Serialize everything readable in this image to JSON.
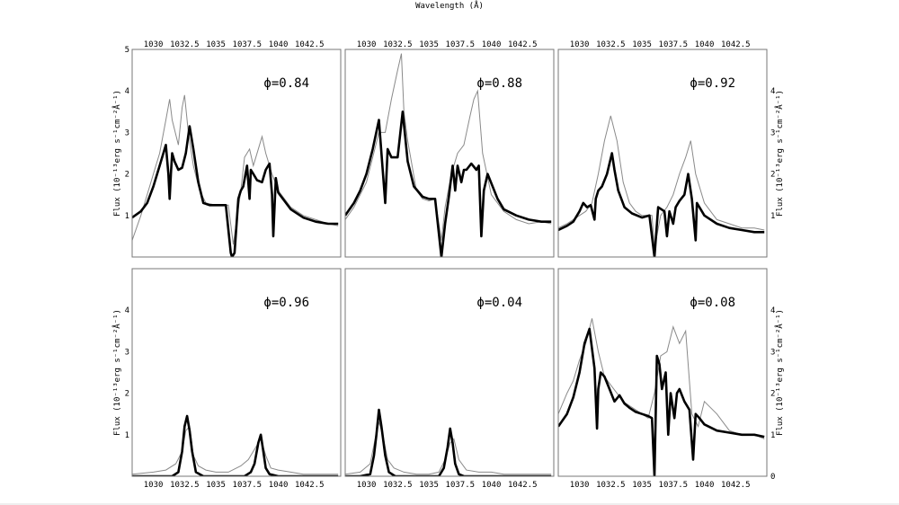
{
  "figure": {
    "top_label": "Wavelength (Å)",
    "ylabel": "Flux (10⁻¹³erg s⁻¹cm⁻²Å⁻¹)"
  },
  "chart_data": [
    {
      "type": "line",
      "phase_label": "ϕ=0.84",
      "panel": "top-left",
      "xlim": [
        1028.3,
        1045.0
      ],
      "ylim": [
        0,
        5
      ],
      "x_ticks": [
        1030,
        1032.5,
        1035,
        1037.5,
        1040,
        1042.5
      ],
      "x_ticks_position": "top",
      "y_ticks": [
        1,
        2,
        3,
        4,
        5
      ],
      "y_ticks_side": "left",
      "model": {
        "x": [
          1028.3,
          1029,
          1029.5,
          1030,
          1030.5,
          1031,
          1031.2,
          1031.3,
          1031.4,
          1031.5,
          1031.7,
          1032,
          1032.3,
          1032.6,
          1032.9,
          1033.2,
          1033.6,
          1034,
          1034.5,
          1035,
          1035.8,
          1036.2,
          1036.3,
          1036.5,
          1036.8,
          1037,
          1037.2,
          1037.5,
          1037.7,
          1037.8,
          1038,
          1038.3,
          1038.7,
          1039,
          1039.3,
          1039.5,
          1039.6,
          1039.8,
          1040,
          1041,
          1042,
          1043,
          1044,
          1044.8
        ],
        "y": [
          0.95,
          1.1,
          1.3,
          1.7,
          2.2,
          2.7,
          2.0,
          1.4,
          2.0,
          2.5,
          2.3,
          2.1,
          2.15,
          2.5,
          3.15,
          2.6,
          1.8,
          1.3,
          1.25,
          1.25,
          1.25,
          0.1,
          0.0,
          0.1,
          1.4,
          1.6,
          1.7,
          2.2,
          1.4,
          2.1,
          2.0,
          1.85,
          1.8,
          2.1,
          2.25,
          1.5,
          0.5,
          1.9,
          1.55,
          1.15,
          0.95,
          0.85,
          0.8,
          0.8
        ]
      },
      "observed": {
        "x": [
          1028.3,
          1029,
          1029.5,
          1030,
          1030.5,
          1031,
          1031.3,
          1031.5,
          1032,
          1032.3,
          1032.5,
          1032.8,
          1033.2,
          1033.7,
          1034.2,
          1035,
          1036,
          1036.4,
          1037,
          1037.3,
          1037.7,
          1038,
          1038.5,
          1038.7,
          1039,
          1039.5,
          1040,
          1041,
          1042,
          1043,
          1044,
          1044.8
        ],
        "y": [
          0.4,
          1.0,
          1.5,
          2.0,
          2.5,
          3.3,
          3.8,
          3.3,
          2.7,
          3.6,
          3.9,
          3.0,
          2.2,
          1.6,
          1.3,
          1.25,
          1.25,
          0.3,
          1.6,
          2.4,
          2.6,
          2.2,
          2.7,
          2.9,
          2.5,
          2.0,
          1.6,
          1.2,
          1.0,
          0.9,
          0.8,
          0.75
        ]
      }
    },
    {
      "type": "line",
      "phase_label": "ϕ=0.88",
      "panel": "top-middle",
      "xlim": [
        1028.3,
        1045.0
      ],
      "ylim": [
        0,
        5
      ],
      "x_ticks": [
        1030,
        1032.5,
        1035,
        1037.5,
        1040,
        1042.5
      ],
      "x_ticks_position": "top",
      "y_ticks": [],
      "y_ticks_side": "none",
      "model": {
        "x": [
          1028.3,
          1029,
          1029.5,
          1030,
          1030.5,
          1031,
          1031.3,
          1031.5,
          1031.7,
          1032,
          1032.5,
          1032.9,
          1033.3,
          1033.8,
          1034.5,
          1035,
          1035.5,
          1036,
          1036.3,
          1036.6,
          1036.9,
          1037.1,
          1037.3,
          1037.6,
          1037.8,
          1038,
          1038.4,
          1038.8,
          1039,
          1039.2,
          1039.4,
          1039.7,
          1040.5,
          1041,
          1042,
          1043,
          1044,
          1044.8
        ],
        "y": [
          1.0,
          1.3,
          1.6,
          2.0,
          2.6,
          3.3,
          2.1,
          1.3,
          2.6,
          2.4,
          2.4,
          3.5,
          2.3,
          1.7,
          1.45,
          1.4,
          1.4,
          0.0,
          0.8,
          1.45,
          2.2,
          1.6,
          2.2,
          1.8,
          2.1,
          2.1,
          2.25,
          2.1,
          2.2,
          0.5,
          1.6,
          2.0,
          1.4,
          1.15,
          1.0,
          0.9,
          0.85,
          0.85
        ]
      },
      "observed": {
        "x": [
          1028.3,
          1029,
          1030,
          1030.5,
          1031,
          1031.5,
          1032,
          1032.5,
          1032.8,
          1033,
          1033.3,
          1034,
          1034.5,
          1035,
          1035.5,
          1036,
          1036.3,
          1036.8,
          1037.3,
          1037.8,
          1038.3,
          1038.6,
          1038.9,
          1039.3,
          1040,
          1041,
          1042,
          1043,
          1044,
          1044.8
        ],
        "y": [
          0.9,
          1.2,
          1.8,
          2.4,
          3.0,
          3.0,
          3.8,
          4.5,
          4.9,
          3.5,
          2.8,
          1.6,
          1.4,
          1.35,
          1.4,
          0.4,
          1.2,
          2.0,
          2.5,
          2.7,
          3.4,
          3.8,
          4.0,
          2.5,
          1.5,
          1.1,
          0.9,
          0.8,
          0.85,
          0.8
        ]
      }
    },
    {
      "type": "line",
      "phase_label": "ϕ=0.92",
      "panel": "top-right",
      "xlim": [
        1028.3,
        1045.0
      ],
      "ylim": [
        0,
        5
      ],
      "x_ticks": [
        1030,
        1032.5,
        1035,
        1037.5,
        1040,
        1042.5
      ],
      "x_ticks_position": "top",
      "y_ticks": [
        1,
        2,
        3,
        4
      ],
      "y_ticks_side": "right",
      "model": {
        "x": [
          1028.3,
          1029,
          1029.5,
          1030,
          1030.3,
          1030.6,
          1030.9,
          1031.2,
          1031.3,
          1031.5,
          1031.8,
          1032.2,
          1032.6,
          1032.8,
          1033.1,
          1033.6,
          1034.2,
          1035,
          1035.6,
          1036.0,
          1036.3,
          1036.8,
          1037.0,
          1037.2,
          1037.5,
          1037.7,
          1038.0,
          1038.4,
          1038.7,
          1039.0,
          1039.3,
          1039.4,
          1039.7,
          1040,
          1041,
          1042,
          1043,
          1044,
          1044.8
        ],
        "y": [
          0.65,
          0.75,
          0.85,
          1.1,
          1.3,
          1.2,
          1.25,
          0.9,
          1.4,
          1.6,
          1.7,
          2.0,
          2.5,
          2.1,
          1.6,
          1.2,
          1.05,
          0.95,
          1.0,
          0.0,
          1.2,
          1.1,
          0.5,
          1.1,
          0.8,
          1.2,
          1.35,
          1.5,
          2.0,
          1.4,
          0.4,
          1.3,
          1.15,
          1.0,
          0.8,
          0.7,
          0.65,
          0.6,
          0.6
        ]
      },
      "observed": {
        "x": [
          1028.3,
          1029,
          1029.5,
          1030,
          1030.5,
          1031,
          1031.5,
          1032,
          1032.5,
          1033,
          1033.5,
          1034,
          1034.5,
          1035,
          1035.8,
          1036,
          1036.5,
          1037,
          1037.5,
          1038,
          1038.5,
          1038.9,
          1039.3,
          1040,
          1041,
          1042,
          1043,
          1044,
          1044.8
        ],
        "y": [
          0.7,
          0.8,
          0.9,
          1.0,
          1.1,
          1.3,
          2.0,
          2.8,
          3.4,
          2.8,
          1.8,
          1.3,
          1.1,
          1.0,
          1.0,
          0.2,
          1.0,
          1.2,
          1.5,
          2.0,
          2.4,
          2.8,
          2.0,
          1.3,
          0.9,
          0.8,
          0.7,
          0.7,
          0.65
        ]
      }
    },
    {
      "type": "line",
      "phase_label": "ϕ=0.96",
      "panel": "bottom-left",
      "xlim": [
        1028.3,
        1045.0
      ],
      "ylim": [
        0,
        5
      ],
      "x_ticks": [
        1030,
        1032.5,
        1035,
        1037.5,
        1040,
        1042.5
      ],
      "x_ticks_position": "bottom",
      "y_ticks": [
        1,
        2,
        3,
        4
      ],
      "y_ticks_side": "left",
      "model": {
        "x": [
          1028.3,
          1030,
          1031.5,
          1032.0,
          1032.3,
          1032.5,
          1032.7,
          1032.9,
          1033.1,
          1033.4,
          1034,
          1036,
          1037.3,
          1037.8,
          1038.1,
          1038.4,
          1038.6,
          1038.8,
          1039.0,
          1039.3,
          1040,
          1042,
          1044.8
        ],
        "y": [
          0.0,
          0.0,
          0.0,
          0.1,
          0.6,
          1.2,
          1.45,
          1.1,
          0.6,
          0.1,
          0.0,
          0.0,
          0.0,
          0.1,
          0.3,
          0.8,
          1.0,
          0.6,
          0.2,
          0.05,
          0.0,
          0.0,
          0.0
        ]
      },
      "observed": {
        "x": [
          1028.3,
          1030,
          1031,
          1031.8,
          1032.3,
          1032.6,
          1032.9,
          1033.2,
          1033.6,
          1034.2,
          1035,
          1036,
          1037,
          1037.6,
          1038.2,
          1038.6,
          1039.0,
          1039.4,
          1040,
          1041,
          1042,
          1043,
          1044.8
        ],
        "y": [
          0.05,
          0.1,
          0.15,
          0.3,
          0.6,
          1.1,
          1.2,
          0.5,
          0.25,
          0.15,
          0.1,
          0.1,
          0.25,
          0.4,
          0.7,
          0.9,
          0.5,
          0.2,
          0.15,
          0.1,
          0.05,
          0.05,
          0.05
        ]
      }
    },
    {
      "type": "line",
      "phase_label": "ϕ=0.04",
      "panel": "bottom-middle",
      "xlim": [
        1028.3,
        1045.0
      ],
      "ylim": [
        0,
        5
      ],
      "x_ticks": [
        1030,
        1032.5,
        1035,
        1037.5,
        1040,
        1042.5
      ],
      "x_ticks_position": "bottom",
      "y_ticks": [],
      "y_ticks_side": "none",
      "model": {
        "x": [
          1028.3,
          1029.5,
          1030.3,
          1030.6,
          1030.8,
          1031.0,
          1031.2,
          1031.5,
          1031.8,
          1032.3,
          1034,
          1035.8,
          1036.2,
          1036.5,
          1036.7,
          1036.9,
          1037.1,
          1037.4,
          1037.8,
          1039,
          1044.8
        ],
        "y": [
          0.0,
          0.0,
          0.05,
          0.5,
          1.0,
          1.6,
          1.2,
          0.5,
          0.1,
          0.0,
          0.0,
          0.0,
          0.2,
          0.7,
          1.15,
          0.8,
          0.3,
          0.05,
          0.0,
          0.0,
          0.0
        ]
      },
      "observed": {
        "x": [
          1028.3,
          1029.5,
          1030.3,
          1030.7,
          1031.0,
          1031.3,
          1031.7,
          1032.2,
          1033,
          1034,
          1035,
          1035.8,
          1036.3,
          1036.7,
          1037.0,
          1037.4,
          1038,
          1039,
          1040,
          1041,
          1042,
          1043,
          1044.8
        ],
        "y": [
          0.05,
          0.1,
          0.3,
          0.9,
          1.3,
          1.0,
          0.4,
          0.2,
          0.1,
          0.05,
          0.05,
          0.1,
          0.4,
          0.8,
          0.9,
          0.4,
          0.15,
          0.1,
          0.1,
          0.05,
          0.05,
          0.05,
          0.05
        ]
      }
    },
    {
      "type": "line",
      "phase_label": "ϕ=0.08",
      "panel": "bottom-right",
      "xlim": [
        1028.3,
        1045.0
      ],
      "ylim": [
        0,
        5
      ],
      "x_ticks": [
        1030,
        1032.5,
        1035,
        1037.5,
        1040,
        1042.5
      ],
      "x_ticks_position": "bottom",
      "y_ticks": [
        0,
        1,
        2,
        3,
        4
      ],
      "y_ticks_side": "right",
      "model": {
        "x": [
          1028.3,
          1029,
          1029.5,
          1030,
          1030.4,
          1030.8,
          1031.2,
          1031.4,
          1031.5,
          1031.7,
          1032,
          1032.4,
          1032.8,
          1033.2,
          1033.6,
          1034,
          1034.5,
          1035,
          1035.5,
          1035.8,
          1036.0,
          1036.2,
          1036.4,
          1036.6,
          1036.9,
          1037.1,
          1037.3,
          1037.6,
          1037.8,
          1038,
          1038.4,
          1038.8,
          1039.1,
          1039.3,
          1039.6,
          1040,
          1041,
          1042,
          1043,
          1044,
          1044.8
        ],
        "y": [
          1.2,
          1.5,
          1.9,
          2.5,
          3.2,
          3.55,
          2.6,
          1.15,
          2.1,
          2.5,
          2.4,
          2.1,
          1.8,
          1.95,
          1.75,
          1.65,
          1.55,
          1.5,
          1.45,
          1.4,
          0.0,
          2.9,
          2.7,
          2.1,
          2.5,
          1.0,
          2.0,
          1.4,
          2.0,
          2.1,
          1.8,
          1.6,
          0.4,
          1.5,
          1.4,
          1.25,
          1.1,
          1.05,
          1.0,
          1.0,
          0.95
        ]
      },
      "observed": {
        "x": [
          1028.3,
          1029,
          1029.5,
          1030,
          1030.5,
          1031,
          1031.5,
          1032,
          1032.5,
          1033,
          1033.5,
          1034,
          1034.5,
          1035,
          1035.5,
          1036,
          1036.5,
          1037,
          1037.5,
          1038,
          1038.5,
          1039,
          1039.5,
          1040,
          1041,
          1042,
          1043,
          1044,
          1044.8
        ],
        "y": [
          1.5,
          2.0,
          2.3,
          2.8,
          3.2,
          3.8,
          3.0,
          2.4,
          2.2,
          2.0,
          1.8,
          1.7,
          1.6,
          1.5,
          1.4,
          2.0,
          2.9,
          3.0,
          3.6,
          3.2,
          3.5,
          1.5,
          1.2,
          1.8,
          1.5,
          1.1,
          1.0,
          1.0,
          0.9
        ]
      }
    }
  ]
}
